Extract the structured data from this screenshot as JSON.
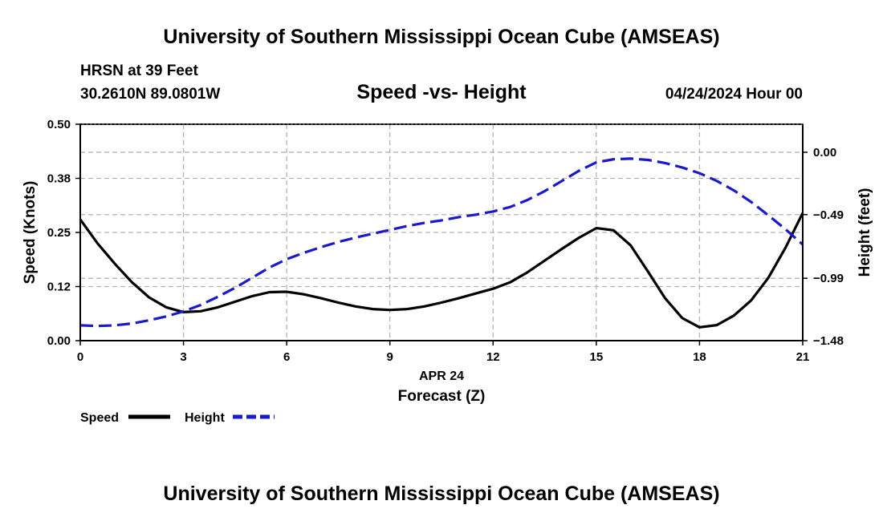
{
  "header": {
    "title_top": "University of Southern Mississippi Ocean Cube (AMSEAS)",
    "title_bottom": "University of Southern Mississippi Ocean Cube (AMSEAS)",
    "station": "HRSN at 39 Feet",
    "coords": "30.2610N  89.0801W",
    "datetime": "04/24/2024 Hour 00"
  },
  "colors": {
    "speed": "#000000",
    "height": "#1a1acc",
    "grid": "#b4b4b4"
  },
  "chart_data": {
    "type": "line",
    "title": "Speed -vs- Height",
    "xlabel": "Forecast (Z)",
    "xsublabel": "APR 24",
    "ylabel_left": "Speed (Knots)",
    "ylabel_right": "Height (feet)",
    "xlim": [
      0,
      21
    ],
    "ylim_left": [
      0,
      0.5
    ],
    "ylim_right": [
      -1.48,
      0.22
    ],
    "x_ticks": [
      0,
      3,
      6,
      9,
      12,
      15,
      18,
      21
    ],
    "x_tick_labels": [
      "0",
      "3",
      "6",
      "9",
      "12",
      "15",
      "18",
      "21"
    ],
    "y_left_ticks": [
      0,
      0.125,
      0.25,
      0.375,
      0.5
    ],
    "y_left_tick_labels": [
      "0.00",
      "0.12",
      "0.25",
      "0.38",
      "0.50"
    ],
    "y_right_ticks": [
      -1.48,
      -0.99,
      -0.49,
      0.0
    ],
    "y_right_tick_labels": [
      "−1.48",
      "−0.99",
      "−0.49",
      "0.00"
    ],
    "grid": true,
    "series": [
      {
        "name": "Speed",
        "axis": "left",
        "style": "solid",
        "x": [
          0,
          0.5,
          1,
          1.5,
          2,
          2.5,
          3,
          3.5,
          4,
          4.5,
          5,
          5.5,
          6,
          6.5,
          7,
          7.5,
          8,
          8.5,
          9,
          9.5,
          10,
          10.5,
          11,
          11.5,
          12,
          12.5,
          13,
          13.5,
          14,
          14.5,
          15,
          15.5,
          16,
          16.5,
          17,
          17.5,
          18,
          18.5,
          19,
          19.5,
          20,
          20.5,
          21
        ],
        "values": [
          0.28,
          0.225,
          0.178,
          0.135,
          0.1,
          0.077,
          0.066,
          0.068,
          0.077,
          0.09,
          0.103,
          0.112,
          0.113,
          0.107,
          0.098,
          0.088,
          0.079,
          0.073,
          0.071,
          0.073,
          0.079,
          0.088,
          0.098,
          0.109,
          0.12,
          0.135,
          0.158,
          0.185,
          0.212,
          0.238,
          0.26,
          0.255,
          0.22,
          0.16,
          0.098,
          0.052,
          0.031,
          0.036,
          0.058,
          0.093,
          0.145,
          0.215,
          0.295
        ]
      },
      {
        "name": "Height",
        "axis": "right",
        "style": "dashed",
        "x": [
          0,
          0.5,
          1,
          1.5,
          2,
          2.5,
          3,
          3.5,
          4,
          4.5,
          5,
          5.5,
          6,
          6.5,
          7,
          7.5,
          8,
          8.5,
          9,
          9.5,
          10,
          10.5,
          11,
          11.5,
          12,
          12.5,
          13,
          13.5,
          14,
          14.5,
          15,
          15.5,
          16,
          16.5,
          17,
          17.5,
          18,
          18.5,
          19,
          19.5,
          20,
          20.5,
          21
        ],
        "values": [
          -1.36,
          -1.365,
          -1.36,
          -1.345,
          -1.32,
          -1.29,
          -1.25,
          -1.2,
          -1.135,
          -1.065,
          -0.985,
          -0.905,
          -0.84,
          -0.79,
          -0.745,
          -0.705,
          -0.67,
          -0.64,
          -0.61,
          -0.58,
          -0.555,
          -0.535,
          -0.51,
          -0.49,
          -0.465,
          -0.43,
          -0.375,
          -0.305,
          -0.225,
          -0.145,
          -0.08,
          -0.055,
          -0.05,
          -0.06,
          -0.085,
          -0.12,
          -0.165,
          -0.225,
          -0.3,
          -0.39,
          -0.495,
          -0.605,
          -0.725
        ]
      }
    ],
    "legend": [
      {
        "label": "Speed",
        "series": "Speed"
      },
      {
        "label": "Height",
        "series": "Height"
      }
    ],
    "legend_position": "bottom-left"
  }
}
